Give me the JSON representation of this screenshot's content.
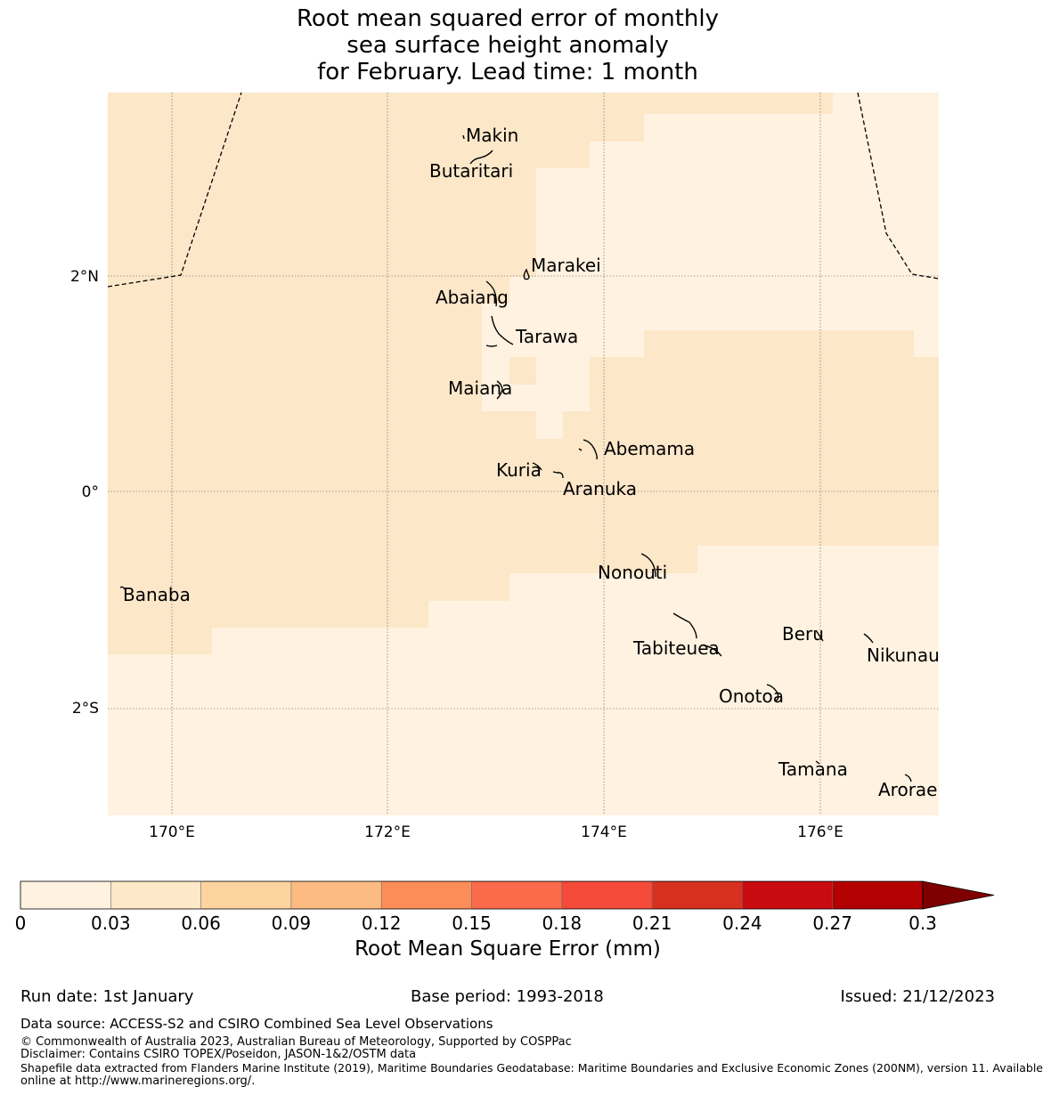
{
  "title": {
    "line1": "Root mean squared error of monthly",
    "line2": "sea surface height anomaly",
    "line3": "for February. Lead time: 1 month"
  },
  "map": {
    "lon_ticks": [
      "170°E",
      "172°E",
      "174°E",
      "176°E"
    ],
    "lat_ticks": [
      "2°N",
      "0°",
      "2°S"
    ],
    "places": [
      "Makin",
      "Butaritari",
      "Marakei",
      "Abaiang",
      "Tarawa",
      "Maiana",
      "Abemama",
      "Kuria",
      "Aranuka",
      "Banaba",
      "Nonouti",
      "Tabiteuea",
      "Beru",
      "Nikunau",
      "Onotoa",
      "Tamana",
      "Arorae"
    ]
  },
  "colorbar": {
    "ticks": [
      "0",
      "0.03",
      "0.06",
      "0.09",
      "0.12",
      "0.15",
      "0.18",
      "0.21",
      "0.24",
      "0.27",
      "0.3"
    ],
    "colors": [
      "#fff2e0",
      "#fde8c8",
      "#fdd49e",
      "#fdbb84",
      "#fc8d59",
      "#fb6b4b",
      "#f44a3a",
      "#d7301f",
      "#c90b10",
      "#b30000",
      "#7f0000"
    ],
    "label": "Root Mean Square Error (mm)"
  },
  "footer": {
    "run_date": "Run date: 1st January",
    "base_period": "Base period: 1993-2018",
    "issued": "Issued: 21/12/2023",
    "data_source": "Data source: ACCESS-S2 and CSIRO Combined Sea Level Observations",
    "copyright": "© Commonwealth of Australia 2023, Australian Bureau of Meteorology, Supported by COSPPac",
    "disclaimer": "Disclaimer: Contains CSIRO TOPEX/Poseidon, JASON-1&2/OSTM data",
    "shapefile_1": "Shapefile data extracted from Flanders Marine Institute (2019), Maritime Boundaries Geodatabase: Maritime Boundaries and Exclusive Economic Zones (200NM), version 11. Available",
    "shapefile_2": "online at http://www.marineregions.org/."
  }
}
